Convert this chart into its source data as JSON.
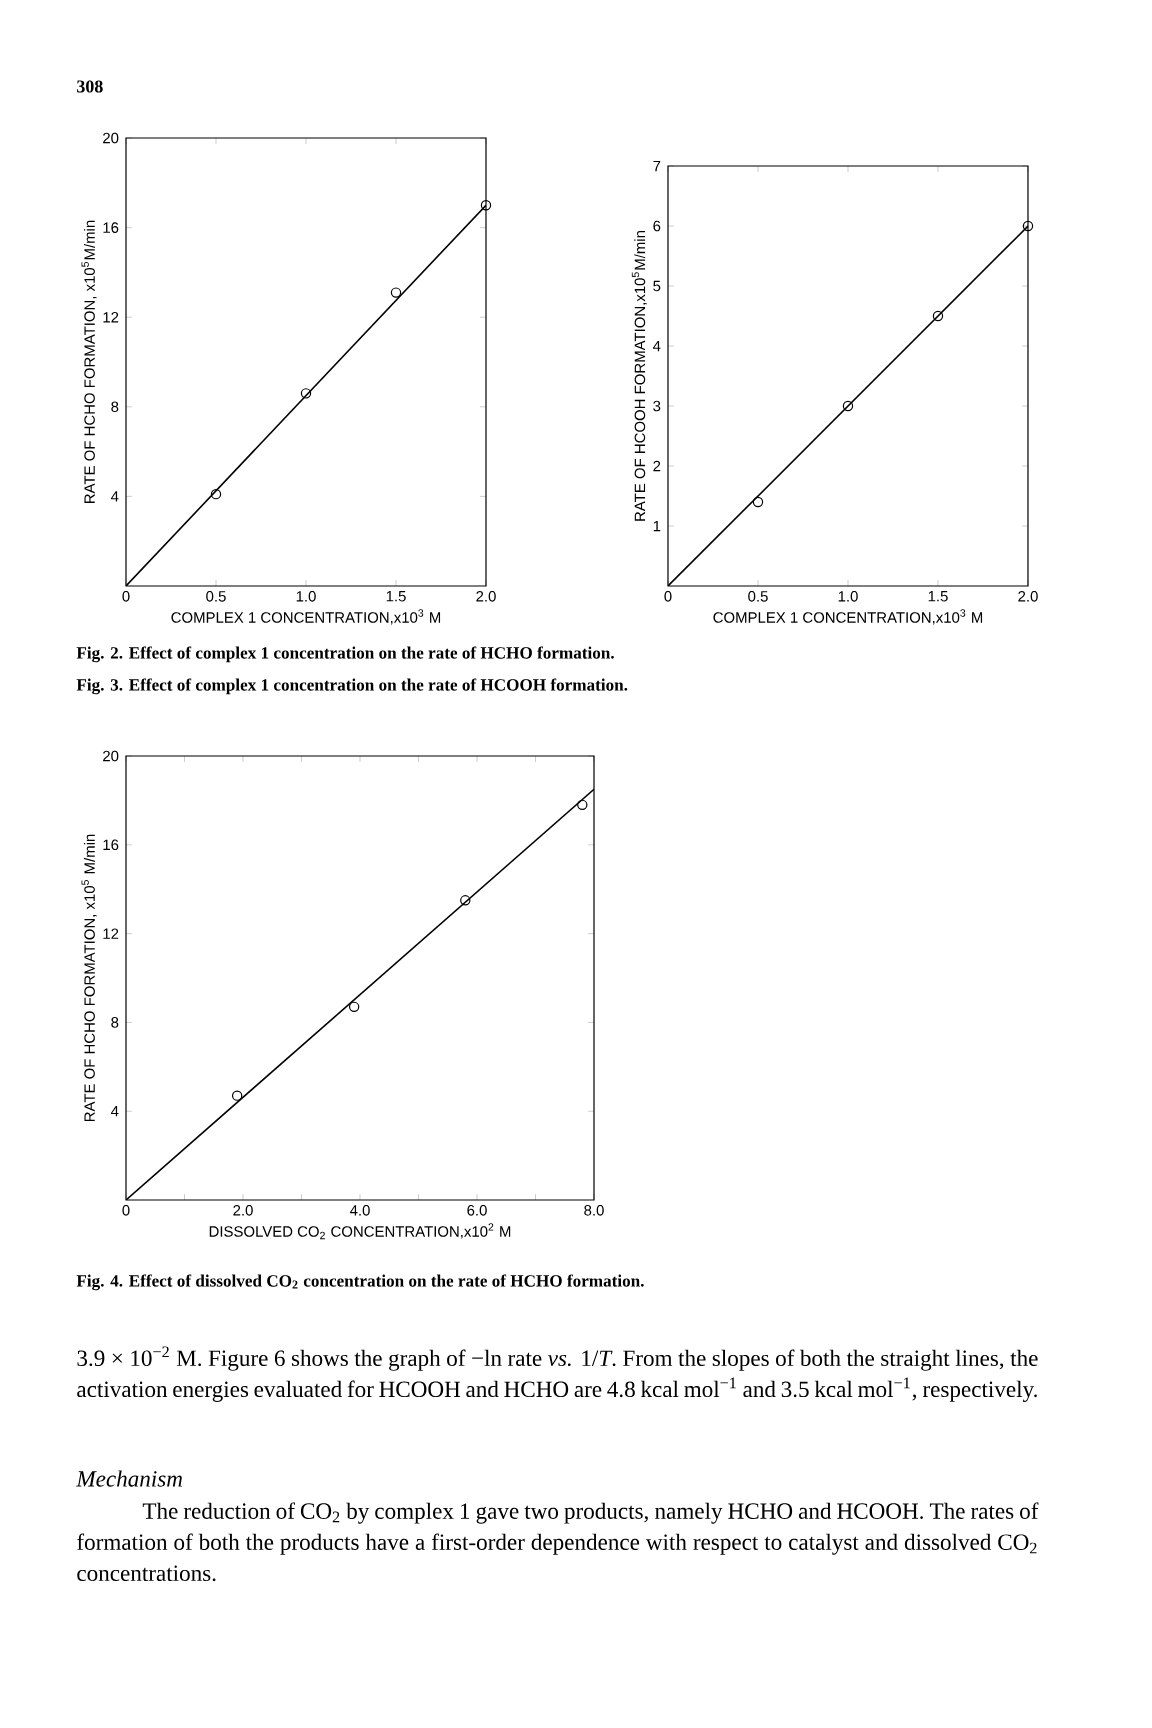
{
  "chart_data": [
    {
      "type": "scatter",
      "xlabel": "COMPLEX 1 CONCENTRATION,x10$^{3}$ M",
      "ylabel": "RATE OF HCHO FORMATION, x10$^{5}$M/min",
      "annotations": [
        "308",
        "Fig. 2. Effect of complex 1 concentration on the rate of HCHO formation."
      ],
      "xlim": [
        0,
        2
      ],
      "ylim": [
        0,
        20
      ],
      "xticks": [
        0,
        {
          "value": 0.5,
          "label": "0.5"
        },
        {
          "value": 1,
          "label": "1.0"
        },
        {
          "value": 1.5,
          "label": "1.5"
        },
        {
          "value": 2,
          "label": "2.0"
        }
      ],
      "yticks": [
        4,
        8,
        12,
        16,
        20
      ],
      "series": [
        {
          "marker": "circle",
          "color": "#000000",
          "x": [
            0.5,
            1,
            1.5,
            2
          ],
          "values": [
            4.1,
            8.6,
            13.1,
            17.0
          ]
        },
        {
          "type": "line",
          "color": "#000000",
          "x": [
            0,
            2
          ],
          "values": [
            0,
            17.0
          ]
        }
      ]
    },
    {
      "type": "scatter",
      "xlabel": "COMPLEX 1 CONCENTRATION,x10$^{3}$ M",
      "ylabel": "RATE OF HCOOH FORMATION,x10$^{5}$M/min",
      "annotations": [
        "Fig. 3. Effect of complex 1 concentration on the rate of HCOOH formation."
      ],
      "xlim": [
        0,
        2
      ],
      "ylim": [
        0,
        7
      ],
      "xticks": [
        0,
        {
          "value": 0.5,
          "label": "0.5"
        },
        {
          "value": 1,
          "label": "1.0"
        },
        {
          "value": 1.5,
          "label": "1.5"
        },
        {
          "value": 2,
          "label": "2.0"
        }
      ],
      "yticks": [
        1,
        2,
        3,
        4,
        5,
        6,
        7
      ],
      "series": [
        {
          "marker": "circle",
          "color": "#000000",
          "x": [
            0.5,
            1,
            1.5,
            2
          ],
          "values": [
            1.4,
            3.0,
            4.5,
            6.0
          ]
        },
        {
          "type": "line",
          "color": "#000000",
          "x": [
            0,
            2
          ],
          "values": [
            0,
            6.0
          ]
        }
      ]
    },
    {
      "type": "scatter",
      "xlabel": "DISSOLVED CO$_{2}$ CONCENTRATION,x10$^{2}$ M",
      "ylabel": "RATE OF HCHO FORMATION, x10$^{5}$ M/min",
      "annotations": [
        "Fig. 4. Effect of dissolved CO$_{2}$ concentration on the rate of HCHO formation.",
        "3.9 × 10$^{−2}$ M. Figure 6 shows the graph of −ln rate *vs.* 1/*T*. From the slopes of both the straight lines, the activation energies evaluated for HCOOH and HCHO are 4.8 kcal mol$^{−1}$ and 3.5 kcal mol$^{−1}$, respectively.",
        "Mechanism",
        "The reduction of CO$_{2}$ by complex 1 gave two products, namely HCHO and HCOOH. The rates of formation of both the products have a first-order dependence with respect to catalyst and dissolved CO$_{2}$ concentrations."
      ],
      "xlim": [
        0,
        8
      ],
      "ylim": [
        0,
        20
      ],
      "xticks": [
        0,
        {
          "value": 1,
          "label": null
        },
        {
          "value": 2,
          "label": "2.0"
        },
        {
          "value": 3,
          "label": null
        },
        {
          "value": 4,
          "label": "4.0"
        },
        {
          "value": 5,
          "label": null
        },
        {
          "value": 6,
          "label": "6.0"
        },
        {
          "value": 7,
          "label": null
        },
        {
          "value": 8,
          "label": "8.0"
        }
      ],
      "yticks": [
        4,
        8,
        12,
        16,
        20
      ],
      "series": [
        {
          "marker": "circle",
          "color": "#000000",
          "x": [
            1.9,
            3.9,
            5.8,
            7.8
          ],
          "values": [
            4.7,
            8.7,
            13.5,
            17.8
          ]
        },
        {
          "type": "line",
          "color": "#000000",
          "x": [
            0,
            8
          ],
          "values": [
            0,
            18.5
          ]
        }
      ]
    }
  ]
}
